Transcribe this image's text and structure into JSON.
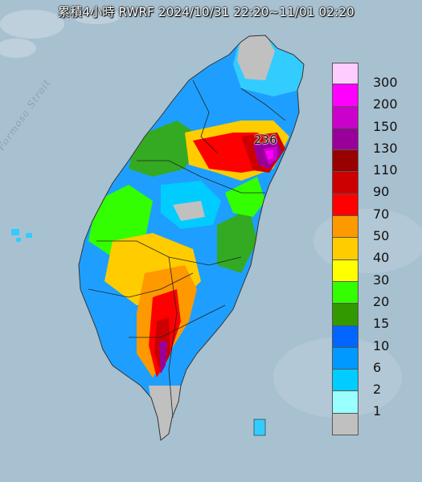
{
  "title": "累積4小時 RWRF 2024/10/31 22:20~11/01 02:20",
  "sea_label": "Formosa Strait",
  "max_marker": {
    "value_label": "236"
  },
  "legend": {
    "items": [
      {
        "label": "300",
        "color": "#ffccff"
      },
      {
        "label": "200",
        "color": "#ff00ff"
      },
      {
        "label": "150",
        "color": "#cc00cc"
      },
      {
        "label": "130",
        "color": "#990099"
      },
      {
        "label": "110",
        "color": "#990000"
      },
      {
        "label": "90",
        "color": "#cc0000"
      },
      {
        "label": "70",
        "color": "#ff0000"
      },
      {
        "label": "50",
        "color": "#ff9900"
      },
      {
        "label": "40",
        "color": "#ffcc00"
      },
      {
        "label": "30",
        "color": "#ffff00"
      },
      {
        "label": "20",
        "color": "#33ff00"
      },
      {
        "label": "15",
        "color": "#339900"
      },
      {
        "label": "10",
        "color": "#0066ff"
      },
      {
        "label": "6",
        "color": "#0099ff"
      },
      {
        "label": "2",
        "color": "#00ccff"
      },
      {
        "label": "1",
        "color": "#99ffff"
      },
      {
        "label": "",
        "color": "#c0c0c0"
      }
    ]
  }
}
